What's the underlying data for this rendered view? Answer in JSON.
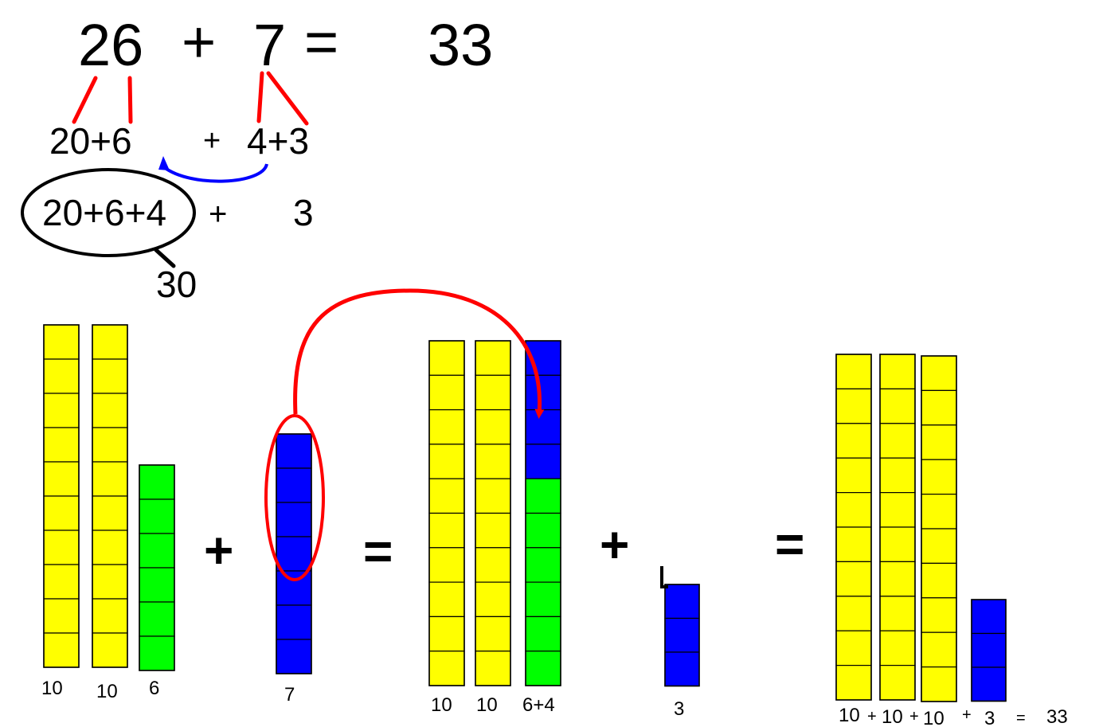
{
  "colors": {
    "tens_rod": "#FFFF00",
    "ones_six": "#00FF00",
    "ones_seven": "#0000FF",
    "split_line": "#FF0000",
    "move_arc": "#0000FF",
    "highlight": "#FF0000",
    "outline": "#000000"
  },
  "equation": {
    "first_addend": "26",
    "plus_sign": "+",
    "second_addend": "7",
    "equals_sign": "=",
    "result": "33"
  },
  "decomposition": {
    "first_split": "20+6",
    "plus_sign": "+",
    "second_split": "4+3"
  },
  "regroup": {
    "grouped_sum": "20+6+4",
    "plus_sign": "+",
    "remainder": "3",
    "grouped_total": "30"
  },
  "blocks": {
    "group_a": {
      "rods": [
        {
          "cubes": 10,
          "color": "tens_rod",
          "label": "10"
        },
        {
          "cubes": 10,
          "color": "tens_rod",
          "label": "10"
        },
        {
          "cubes": 6,
          "color": "ones_six",
          "label": "6"
        }
      ]
    },
    "operator_1": "+",
    "group_b": {
      "rods": [
        {
          "cubes": 7,
          "color": "ones_seven",
          "label": "7"
        }
      ]
    },
    "operator_2": "=",
    "group_c": {
      "rods": [
        {
          "cubes": 10,
          "color": "tens_rod",
          "label": "10"
        },
        {
          "cubes": 10,
          "color": "tens_rod",
          "label": "10"
        },
        {
          "cubes": 10,
          "colors": [
            "ones_seven",
            "ones_seven",
            "ones_seven",
            "ones_seven",
            "ones_six",
            "ones_six",
            "ones_six",
            "ones_six",
            "ones_six",
            "ones_six"
          ],
          "label": "6+4"
        }
      ]
    },
    "operator_3": "+",
    "group_d": {
      "rods": [
        {
          "cubes": 3,
          "color": "ones_seven",
          "label": "3"
        }
      ]
    },
    "operator_4": "=",
    "group_e": {
      "rods": [
        {
          "cubes": 10,
          "color": "tens_rod"
        },
        {
          "cubes": 10,
          "color": "tens_rod"
        },
        {
          "cubes": 10,
          "color": "tens_rod"
        },
        {
          "cubes": 3,
          "color": "ones_seven"
        }
      ],
      "sum_line": [
        {
          "text": "10",
          "role": "term"
        },
        {
          "text": "+",
          "role": "op"
        },
        {
          "text": "10",
          "role": "term"
        },
        {
          "text": "+",
          "role": "op"
        },
        {
          "text": "10",
          "role": "term"
        },
        {
          "text": "+",
          "role": "op"
        },
        {
          "text": "3",
          "role": "term"
        },
        {
          "text": "=",
          "role": "op"
        },
        {
          "text": "33",
          "role": "term"
        }
      ]
    }
  }
}
